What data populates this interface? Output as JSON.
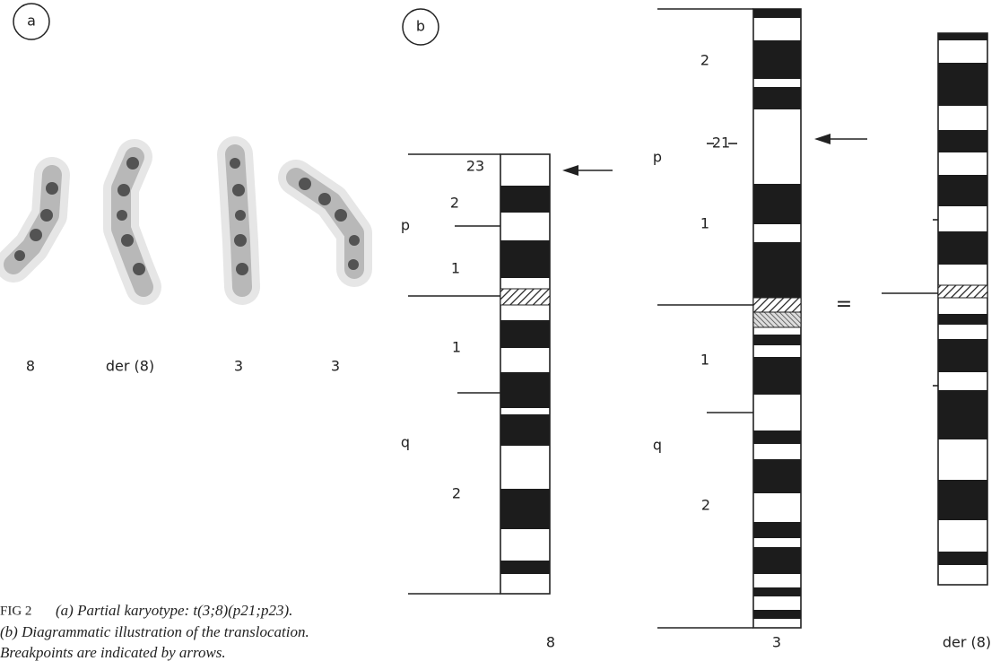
{
  "panel_labels": [
    "a",
    "b"
  ],
  "karyotype_labels": [
    "8",
    "der (8)",
    "3",
    "3"
  ],
  "ideograms": [
    {
      "name": "8",
      "labels": [
        "23",
        "2",
        "p",
        "1",
        "1",
        "q",
        "2"
      ]
    },
    {
      "name": "3",
      "labels": [
        "2",
        "21",
        "p",
        "1",
        "1",
        "q",
        "2"
      ]
    },
    {
      "name": "der (8)"
    }
  ],
  "equals": "=",
  "caption": {
    "figure": "FIG 2",
    "lines": [
      "(a) Partial karyotype: t(3;8)(p21;p23).",
      "(b) Diagrammatic illustration of the translocation.",
      "Breakpoints are indicated by arrows."
    ]
  }
}
